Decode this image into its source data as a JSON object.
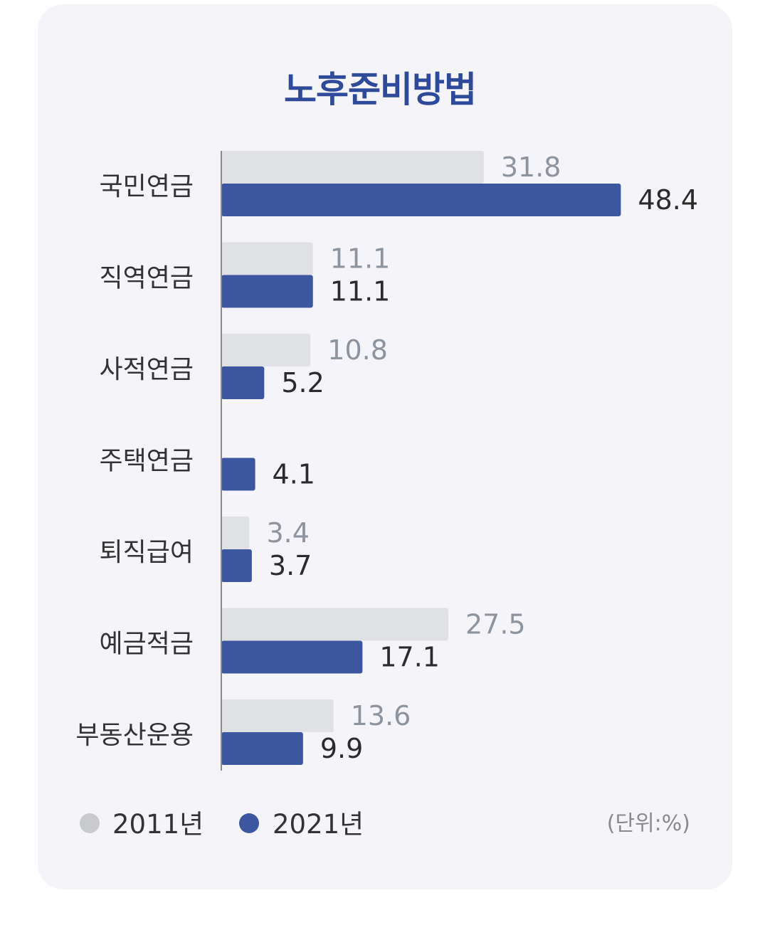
{
  "chart_data": {
    "type": "bar",
    "orientation": "horizontal",
    "title": "노후준비방법",
    "categories": [
      "국민연금",
      "직역연금",
      "사적연금",
      "주택연금",
      "퇴직급여",
      "예금적금",
      "부동산운용"
    ],
    "series": [
      {
        "name": "2011년",
        "values": [
          31.8,
          11.1,
          10.8,
          null,
          3.4,
          27.5,
          13.6
        ]
      },
      {
        "name": "2021년",
        "values": [
          48.4,
          11.1,
          5.2,
          4.1,
          3.7,
          17.1,
          9.9
        ]
      }
    ],
    "value_labels": [
      [
        "31.8",
        "11.1",
        "10.8",
        "",
        "3.4",
        "27.5",
        "13.6"
      ],
      [
        "48.4",
        "11.1",
        "5.2",
        "4.1",
        "3.7",
        "17.1",
        "9.9"
      ]
    ],
    "unit_note": "(단위:%)",
    "legend_position": "bottom-left",
    "colors": {
      "series_2011": "#dfe1e5",
      "series_2021": "#3c57a0",
      "legend_2011": "#c8cacd",
      "label_2011": "#8e949e",
      "label_2021": "#2b2b2b",
      "category_label": "#333333",
      "axis": "#8a8a8a",
      "title": "#2e4a9a"
    }
  }
}
